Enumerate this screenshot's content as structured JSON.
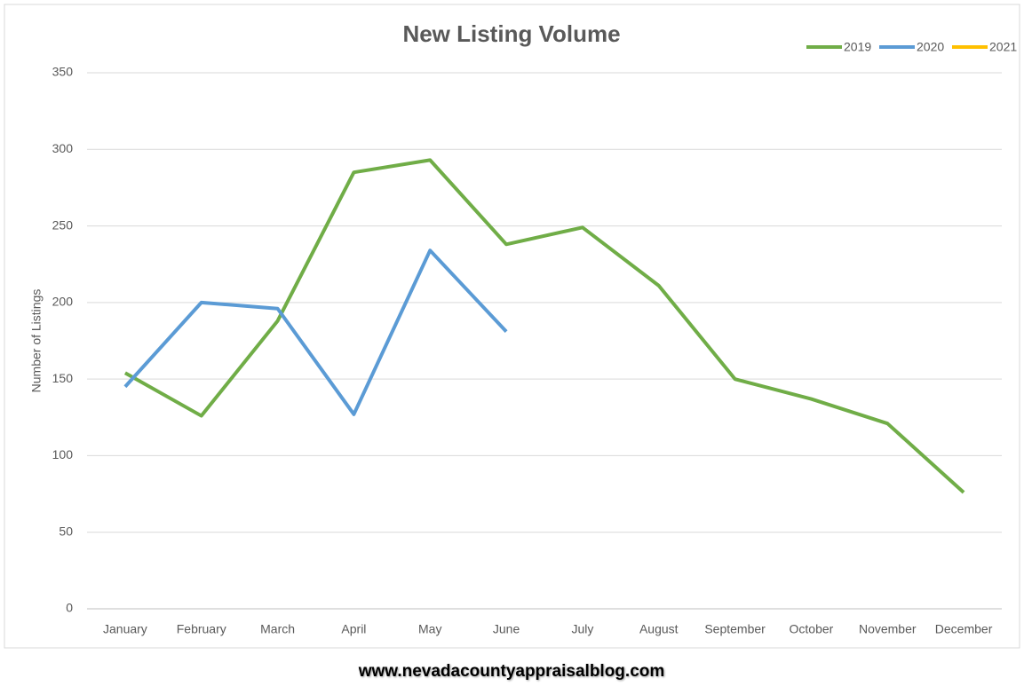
{
  "chart_data": {
    "type": "line",
    "title": "New Listing Volume",
    "ylabel": "Number of Listings",
    "categories": [
      "January",
      "February",
      "March",
      "April",
      "May",
      "June",
      "July",
      "August",
      "September",
      "October",
      "November",
      "December"
    ],
    "series": [
      {
        "name": "2019",
        "color": "#70ad47",
        "values": [
          154,
          126,
          188,
          285,
          293,
          238,
          249,
          211,
          150,
          137,
          121,
          76
        ]
      },
      {
        "name": "2020",
        "color": "#5b9bd5",
        "values": [
          145,
          200,
          196,
          127,
          234,
          181,
          null,
          null,
          null,
          null,
          null,
          null
        ]
      },
      {
        "name": "2021",
        "color": "#ffc000",
        "values": [
          null,
          null,
          null,
          null,
          null,
          null,
          null,
          null,
          null,
          null,
          null,
          null
        ]
      }
    ],
    "ylim": [
      0,
      350
    ],
    "yticks": [
      0,
      50,
      100,
      150,
      200,
      250,
      300,
      350
    ],
    "grid": true,
    "legend": "top-right"
  },
  "footer": "www.nevadacountyappraisalblog.com"
}
